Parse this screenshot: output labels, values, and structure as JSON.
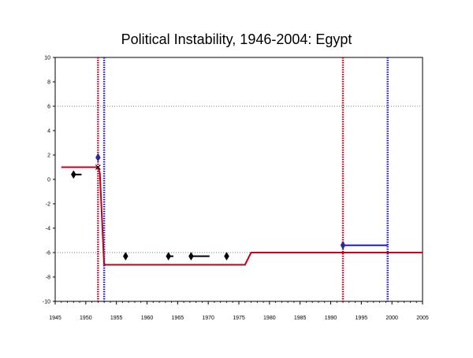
{
  "chart_data": {
    "type": "line",
    "title": "Political Instability, 1946-2004: Egypt",
    "xlim": [
      1945,
      2005
    ],
    "ylim": [
      -10,
      10
    ],
    "x_ticks": [
      1945,
      1950,
      1955,
      1960,
      1965,
      1970,
      1975,
      1980,
      1985,
      1990,
      1995,
      2000,
      2005
    ],
    "y_ticks": [
      -10,
      -8,
      -6,
      -4,
      -2,
      0,
      2,
      4,
      6,
      8,
      10
    ],
    "reference_lines_y": [
      6,
      -6
    ],
    "colors": {
      "red": "#c0001a",
      "blue": "#1a1ad0",
      "dark": "#000000",
      "navy": "#2a2a9a",
      "grid": "#808080"
    },
    "series": [
      {
        "style": "step-line",
        "color": "red",
        "points": [
          [
            1946,
            1
          ],
          [
            1952,
            1
          ],
          [
            1952.3,
            0.5
          ],
          [
            1953,
            -7
          ],
          [
            1976,
            -7
          ],
          [
            1977,
            -6
          ],
          [
            2005,
            -6
          ]
        ]
      },
      {
        "style": "step-line",
        "color": "blue",
        "points": [
          [
            1992,
            -5.4
          ],
          [
            1999.3,
            -5.4
          ]
        ]
      }
    ],
    "vertical_markers": [
      {
        "x": 1952,
        "color": "red"
      },
      {
        "x": 1953,
        "color": "blue"
      },
      {
        "x": 1992,
        "color": "red"
      },
      {
        "x": 1999.3,
        "color": "blue"
      }
    ],
    "event_markers": [
      {
        "x": 1948,
        "y": 0.4,
        "tail_to": 1949.3
      },
      {
        "x": 1952,
        "y": 1.8
      },
      {
        "x": 1956.5,
        "y": -6.3
      },
      {
        "x": 1963.5,
        "y": -6.3,
        "tail_to": 1964.3
      },
      {
        "x": 1967.2,
        "y": -6.3,
        "tail_to": 1970.2
      },
      {
        "x": 1973,
        "y": -6.3
      },
      {
        "x": 1992,
        "y": -5.4
      }
    ],
    "cross_markers": [
      {
        "x": 1952,
        "y": 1.0
      }
    ]
  }
}
